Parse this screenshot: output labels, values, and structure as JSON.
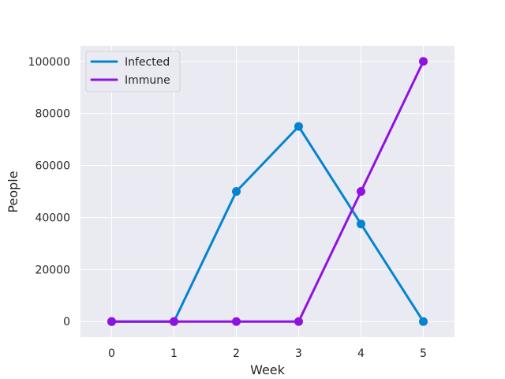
{
  "chart_data": {
    "type": "line",
    "title": "",
    "xlabel": "Week",
    "ylabel": "People",
    "x": [
      0,
      1,
      2,
      3,
      4,
      5
    ],
    "xlim": [
      -0.5,
      5.5
    ],
    "ylim": [
      -6000,
      106000
    ],
    "yticks": [
      0,
      20000,
      40000,
      60000,
      80000,
      100000
    ],
    "grid": true,
    "legend_position": "top-left",
    "series": [
      {
        "name": "Infected",
        "color": "#0384d0",
        "values": [
          0,
          0,
          50000,
          75000,
          37500,
          0
        ]
      },
      {
        "name": "Immune",
        "color": "#9012e0",
        "values": [
          0,
          0,
          0,
          0,
          50000,
          100000
        ]
      }
    ]
  }
}
